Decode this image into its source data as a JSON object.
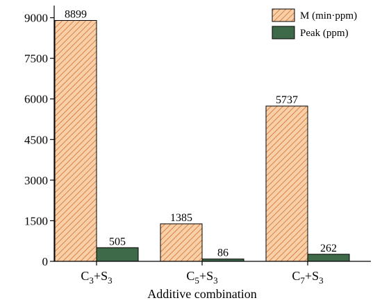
{
  "chart_data": {
    "type": "bar",
    "title": "",
    "xlabel": "Additive combination",
    "ylabel": "",
    "ylim": [
      0,
      9450
    ],
    "yticks": [
      0,
      1500,
      3000,
      4500,
      6000,
      7500,
      9000
    ],
    "categories": [
      {
        "base": "C",
        "sub1": "3",
        "mid": "+S",
        "sub2": "3"
      },
      {
        "base": "C",
        "sub1": "5",
        "mid": "+S",
        "sub2": "3"
      },
      {
        "base": "C",
        "sub1": "7",
        "mid": "+S",
        "sub2": "3"
      }
    ],
    "series": [
      {
        "name": "M (min·ppm)",
        "values": [
          8899,
          1385,
          5737
        ],
        "color": "#f4b98a",
        "pattern": "diagonal-hatch"
      },
      {
        "name": "Peak (ppm)",
        "values": [
          505,
          86,
          262
        ],
        "color": "#3f6a4a",
        "pattern": "solid"
      }
    ],
    "legend_position": "top-right",
    "grid": false
  }
}
